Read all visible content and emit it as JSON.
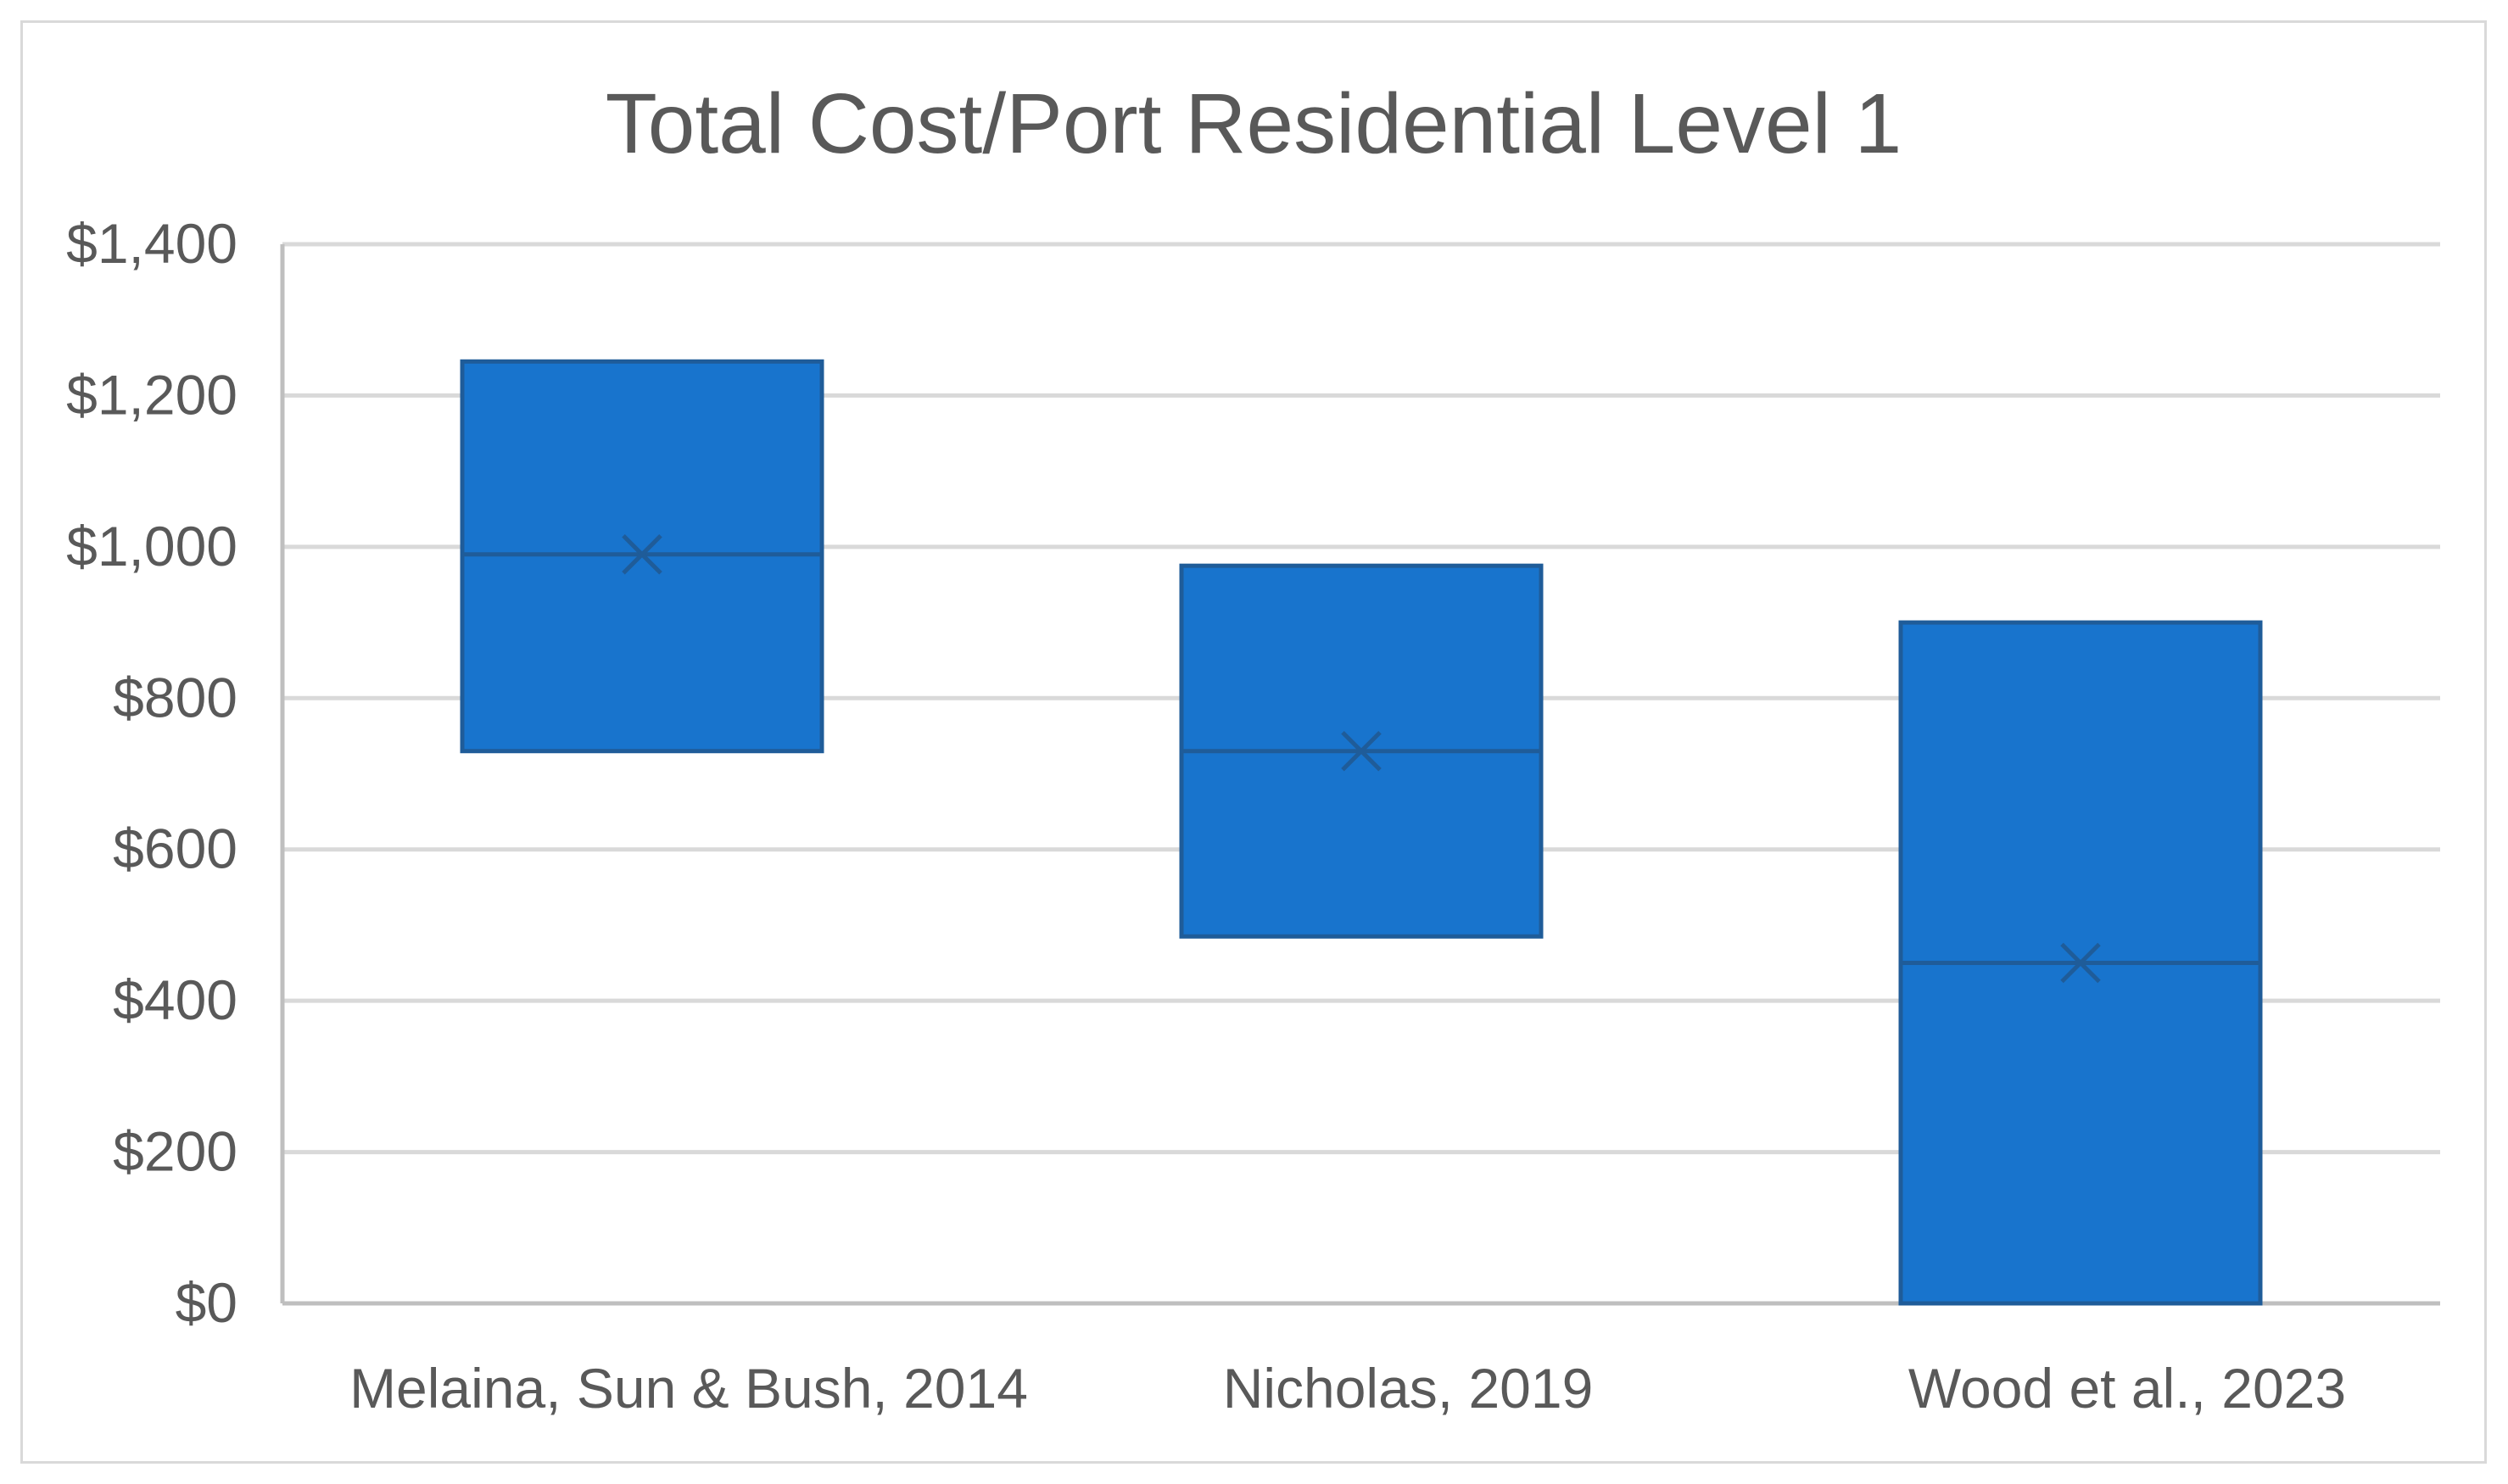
{
  "chart_data": {
    "type": "box",
    "title": "Total Cost/Port Residential Level 1",
    "xlabel": "",
    "ylabel": "",
    "ylim": [
      0,
      1400
    ],
    "y_ticks": [
      0,
      200,
      400,
      600,
      800,
      1000,
      1200,
      1400
    ],
    "y_tick_labels": [
      "$0",
      "$200",
      "$400",
      "$600",
      "$800",
      "$1,000",
      "$1,200",
      "$1,400"
    ],
    "grid": true,
    "legend": "none",
    "categories": [
      "Melaina, Sun & Bush, 2014",
      "Nicholas, 2019",
      "Wood et al., 2023"
    ],
    "series": [
      {
        "name": "Total Cost/Port",
        "boxes": [
          {
            "low": 730,
            "high": 1245,
            "median": 990,
            "mean": 990
          },
          {
            "low": 485,
            "high": 975,
            "median": 730,
            "mean": 730
          },
          {
            "low": 0,
            "high": 900,
            "median": 450,
            "mean": 450
          }
        ]
      }
    ],
    "colors": {
      "box_fill": "#1874CD",
      "box_stroke": "#1F5C99",
      "median_line": "#1F5C99",
      "grid": "#D9D9D9",
      "axis": "#BFBFBF",
      "text": "#595959"
    }
  }
}
